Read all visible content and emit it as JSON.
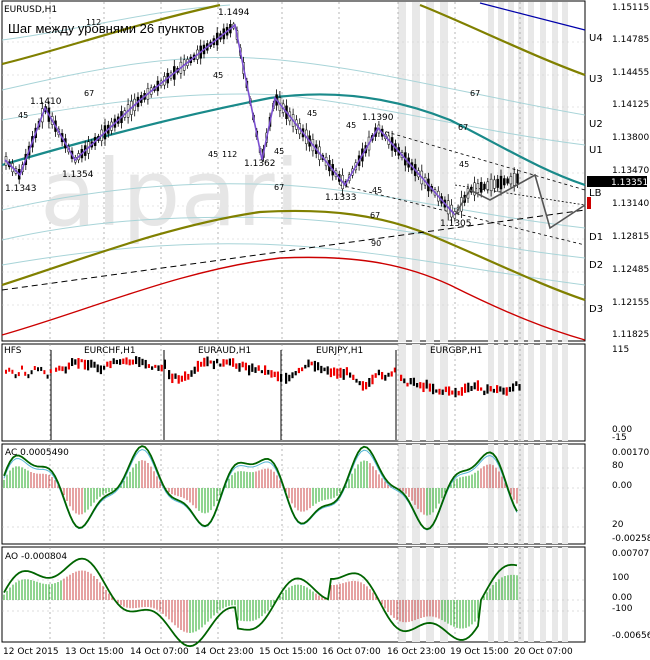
{
  "main": {
    "symbol_label": "EURUSD,H1",
    "subtitle": "Шаг между уровнями 26 пунктов",
    "price_axis": [
      "1.15115",
      "1.14785",
      "1.14455",
      "1.14125",
      "1.13800",
      "1.13470",
      "1.13140",
      "1.12815",
      "1.12485",
      "1.12155",
      "1.11825"
    ],
    "current_price": "1.13351",
    "levels": [
      "U4",
      "U3",
      "U2",
      "U1",
      "LB",
      "D1",
      "D2",
      "D3"
    ],
    "point_labels": [
      "1.1494",
      "1.1410",
      "1.1343",
      "1.1354",
      "1.1362",
      "1.1333",
      "1.1390",
      "1.1305"
    ],
    "ratio_labels": [
      "112",
      "67",
      "45",
      "45",
      "45",
      "112",
      "45",
      "45",
      "67",
      "45",
      "45",
      "67",
      "45",
      "67",
      "90",
      "67"
    ],
    "watermark": "alpari"
  },
  "panel2": {
    "label_left": "HFS",
    "symbols": [
      "EURCHF,H1",
      "EURAUD,H1",
      "EURJPY,H1",
      "EURGBP,H1"
    ],
    "axis": [
      "115",
      "0.00",
      "-15"
    ]
  },
  "panel3": {
    "label": "AC 0.0005490",
    "axis": [
      "0.001703",
      "80",
      "0.00",
      "20",
      "-0.002580"
    ]
  },
  "panel4": {
    "label": "AO -0.000804",
    "axis": [
      "0.007071",
      "100",
      "0.00",
      "-100",
      "-0.006562"
    ]
  },
  "time_axis": [
    "12 Oct 2015",
    "13 Oct 15:00",
    "14 Oct 07:00",
    "14 Oct 23:00",
    "15 Oct 15:00",
    "16 Oct 07:00",
    "16 Oct 23:00",
    "19 Oct 15:00",
    "20 Oct 07:00"
  ],
  "colors": {
    "olive": "#808000",
    "teal": "#1a8a8a",
    "red": "#cc0000",
    "green": "#006400",
    "purple": "#7b4fd0",
    "blue": "#0000aa",
    "grid": "#c8c8c8"
  }
}
